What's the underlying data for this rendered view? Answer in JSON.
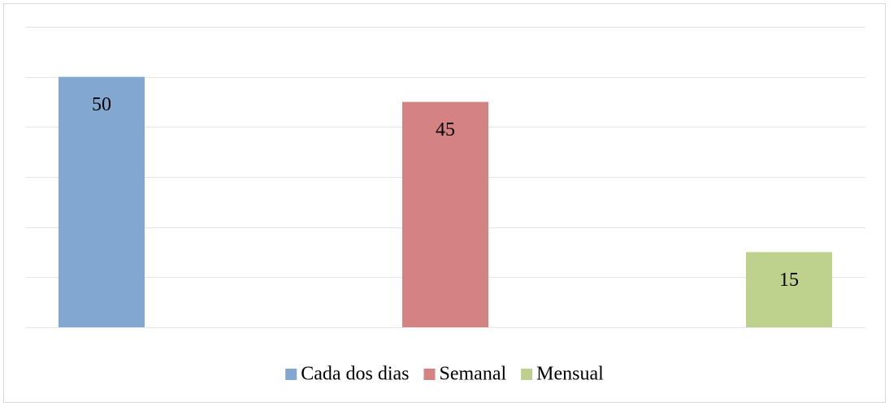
{
  "chart_data": {
    "type": "bar",
    "series": [
      {
        "name": "Cada dos dias",
        "color": "#82a8d2",
        "values": [
          50
        ]
      },
      {
        "name": "Semanal",
        "color": "#d48282",
        "values": [
          45
        ]
      },
      {
        "name": "Mensual",
        "color": "#bdd08c",
        "values": [
          15
        ]
      }
    ],
    "ylim": [
      0,
      60
    ],
    "yticks": [
      0,
      10,
      20,
      30,
      40,
      50,
      60
    ],
    "grid": true,
    "legend": "bottom"
  }
}
